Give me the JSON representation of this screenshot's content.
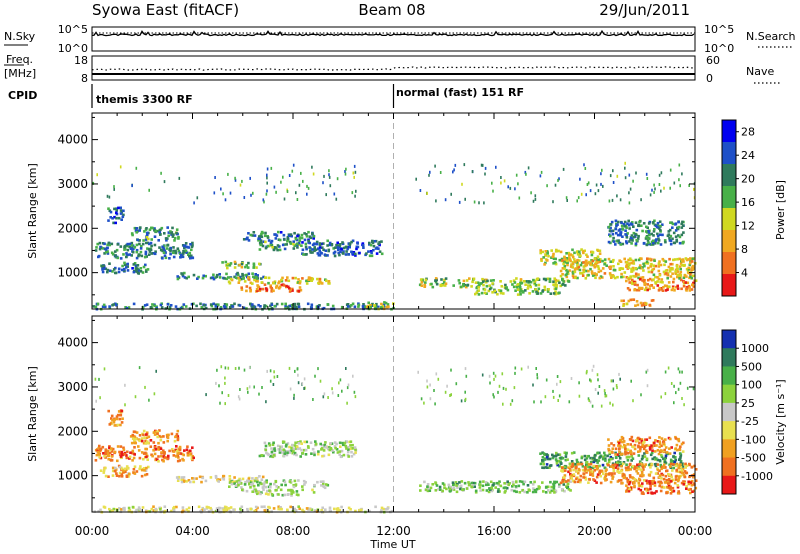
{
  "header": {
    "station": "Syowa East (fitACF)",
    "beam": "Beam 08",
    "date": "29/Jun/2011"
  },
  "strip_labels": {
    "nsky": "N.Sky",
    "nsky_ticks": [
      "10^5",
      "10^0"
    ],
    "nsearch_ticks": [
      "10^5",
      "10^0"
    ],
    "nsearch": "N.Search",
    "freq": "Freq.",
    "freq_unit": "[MHz]",
    "freq_ticks": [
      "18",
      "8"
    ],
    "nave_ticks": [
      "60",
      "0"
    ],
    "nave": "Nave",
    "cpid": "CPID"
  },
  "cpid_segments": [
    {
      "label": "themis 3300 RF",
      "start_hour": 0
    },
    {
      "label": "normal (fast) 151 RF",
      "start_hour": 12
    }
  ],
  "chart_data": [
    {
      "type": "heatmap",
      "quantity": "Power",
      "xlabel": "Time UT",
      "ylabel": "Slant Range [km]",
      "x_ticks": [
        "00:00",
        "04:00",
        "08:00",
        "12:00",
        "16:00",
        "20:00",
        "00:00"
      ],
      "x_range_hours": [
        0,
        24
      ],
      "y_ticks": [
        1000,
        2000,
        3000,
        4000
      ],
      "ylim": [
        180,
        4600
      ],
      "colorbar": {
        "label": "Power [dB]",
        "ticks": [
          "4",
          "8",
          "12",
          "16",
          "20",
          "24",
          "28"
        ],
        "range": [
          0,
          30
        ],
        "colors": [
          "#0000f0",
          "#1e50c8",
          "#2f7a5c",
          "#48b048",
          "#cfd820",
          "#f0a820",
          "#f07020",
          "#e81818"
        ]
      },
      "echo_regions": [
        {
          "t": [
            0.6,
            1.2
          ],
          "r": [
            2150,
            2500
          ],
          "level": 0.22
        },
        {
          "t": [
            0.1,
            4.0
          ],
          "r": [
            1350,
            1700
          ],
          "level": 0.3
        },
        {
          "t": [
            1.5,
            3.4
          ],
          "r": [
            1750,
            2050
          ],
          "level": 0.35
        },
        {
          "t": [
            0.3,
            2.2
          ],
          "r": [
            1000,
            1250
          ],
          "level": 0.28
        },
        {
          "t": [
            3.3,
            6.8
          ],
          "r": [
            880,
            1020
          ],
          "level": 0.3
        },
        {
          "t": [
            5.1,
            6.7
          ],
          "r": [
            1130,
            1270
          ],
          "level": 0.5
        },
        {
          "t": [
            6.0,
            8.8
          ],
          "r": [
            1750,
            1950
          ],
          "level": 0.28
        },
        {
          "t": [
            6.6,
            8.3
          ],
          "r": [
            1520,
            1750
          ],
          "level": 0.35
        },
        {
          "t": [
            5.4,
            9.4
          ],
          "r": [
            780,
            920
          ],
          "level": 0.62
        },
        {
          "t": [
            5.9,
            8.3
          ],
          "r": [
            600,
            760
          ],
          "level": 0.8
        },
        {
          "t": [
            8.3,
            11.5
          ],
          "r": [
            1400,
            1750
          ],
          "level": 0.25
        },
        {
          "t": [
            0.0,
            12.0
          ],
          "r": [
            200,
            330
          ],
          "level": 0.3
        },
        {
          "t": [
            10.9,
            12.0
          ],
          "r": [
            200,
            360
          ],
          "level": 0.55
        },
        {
          "t": [
            13.0,
            19.0
          ],
          "r": [
            700,
            900
          ],
          "level": 0.5
        },
        {
          "t": [
            15.2,
            18.6
          ],
          "r": [
            530,
            700
          ],
          "level": 0.45
        },
        {
          "t": [
            17.8,
            20.2
          ],
          "r": [
            1200,
            1550
          ],
          "level": 0.55
        },
        {
          "t": [
            18.6,
            24.0
          ],
          "r": [
            900,
            1350
          ],
          "level": 0.6
        },
        {
          "t": [
            21.2,
            24.0
          ],
          "r": [
            620,
            900
          ],
          "level": 0.75
        },
        {
          "t": [
            20.5,
            23.5
          ],
          "r": [
            1650,
            2200
          ],
          "level": 0.3
        },
        {
          "t": [
            21.0,
            22.4
          ],
          "r": [
            280,
            420
          ],
          "level": 0.7
        }
      ]
    },
    {
      "type": "heatmap",
      "quantity": "Velocity",
      "xlabel": "Time UT",
      "ylabel": "Slant Range [km]",
      "x_ticks": [
        "00:00",
        "04:00",
        "08:00",
        "12:00",
        "16:00",
        "20:00",
        "00:00"
      ],
      "x_range_hours": [
        0,
        24
      ],
      "y_ticks": [
        1000,
        2000,
        3000,
        4000
      ],
      "ylim": [
        180,
        4600
      ],
      "colorbar": {
        "label": "Velocity [m s⁻¹]",
        "ticks": [
          "1000",
          "500",
          "100",
          "25",
          "-25",
          "-100",
          "-500",
          "-1000"
        ],
        "colors": [
          "#1430b0",
          "#2f7a5c",
          "#48b048",
          "#8cd23c",
          "#c8c8c8",
          "#e8e050",
          "#f0a020",
          "#f07020",
          "#e81818"
        ]
      },
      "echo_regions": [
        {
          "t": [
            0.6,
            1.2
          ],
          "r": [
            2150,
            2500
          ],
          "level": 0.75
        },
        {
          "t": [
            0.1,
            4.0
          ],
          "r": [
            1350,
            1700
          ],
          "level": 0.8
        },
        {
          "t": [
            1.5,
            3.4
          ],
          "r": [
            1750,
            2050
          ],
          "level": 0.75
        },
        {
          "t": [
            0.3,
            2.2
          ],
          "r": [
            1000,
            1250
          ],
          "level": 0.7
        },
        {
          "t": [
            3.3,
            6.8
          ],
          "r": [
            880,
            1020
          ],
          "level": 0.6
        },
        {
          "t": [
            6.6,
            10.5
          ],
          "r": [
            1450,
            1800
          ],
          "level": 0.42
        },
        {
          "t": [
            5.4,
            9.4
          ],
          "r": [
            750,
            920
          ],
          "level": 0.42
        },
        {
          "t": [
            5.9,
            8.8
          ],
          "r": [
            580,
            720
          ],
          "level": 0.45
        },
        {
          "t": [
            0.0,
            12.0
          ],
          "r": [
            200,
            330
          ],
          "level": 0.55
        },
        {
          "t": [
            13.0,
            19.0
          ],
          "r": [
            650,
            900
          ],
          "level": 0.35
        },
        {
          "t": [
            17.8,
            23.5
          ],
          "r": [
            1200,
            1550
          ],
          "level": 0.25
        },
        {
          "t": [
            18.6,
            24.0
          ],
          "r": [
            850,
            1300
          ],
          "level": 0.75
        },
        {
          "t": [
            20.5,
            23.5
          ],
          "r": [
            1500,
            1900
          ],
          "level": 0.78
        },
        {
          "t": [
            21.2,
            24.0
          ],
          "r": [
            620,
            900
          ],
          "level": 0.8
        }
      ]
    }
  ]
}
